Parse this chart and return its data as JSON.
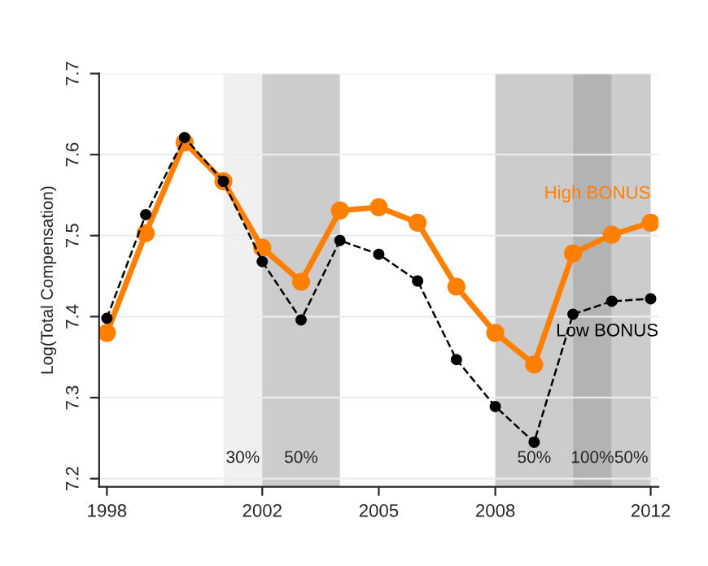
{
  "chart_data": {
    "type": "line",
    "ylabel": "Log(Total Compensation)",
    "x": [
      1998,
      1999,
      2000,
      2001,
      2002,
      2003,
      2004,
      2005,
      2006,
      2007,
      2008,
      2009,
      2010,
      2011,
      2012
    ],
    "series": [
      {
        "name": "Low BONUS",
        "color": "#000000",
        "marker": "circle",
        "line_style": "dashed",
        "values": [
          7.398,
          7.526,
          7.621,
          7.567,
          7.468,
          7.396,
          7.494,
          7.477,
          7.444,
          7.347,
          7.289,
          7.245,
          7.403,
          7.419,
          7.422
        ]
      },
      {
        "name": "High BONUS",
        "color": "#ff8000",
        "marker": "circle",
        "line_style": "solid",
        "values": [
          7.38,
          7.503,
          7.615,
          7.567,
          7.485,
          7.443,
          7.531,
          7.535,
          7.516,
          7.437,
          7.38,
          7.341,
          7.478,
          7.501,
          7.516
        ]
      }
    ],
    "bands": [
      {
        "axis": "x",
        "from": 2001,
        "to": 2002,
        "label": "30%",
        "color": "#f0f0f0"
      },
      {
        "axis": "x",
        "from": 2002,
        "to": 2004,
        "label": "50%",
        "color": "#cccccc"
      },
      {
        "axis": "x",
        "from": 2008,
        "to": 2010,
        "label": "50%",
        "color": "#cccccc"
      },
      {
        "axis": "x",
        "from": 2010,
        "to": 2011,
        "label": "100%",
        "color": "#b3b3b3"
      },
      {
        "axis": "x",
        "from": 2011,
        "to": 2012,
        "label": "50%",
        "color": "#cccccc"
      }
    ],
    "xlim": [
      1997.8,
      2012.2
    ],
    "xticks": [
      1998,
      2002,
      2005,
      2008,
      2012
    ],
    "ylim": [
      7.19,
      7.7
    ],
    "yticks": [
      7.2,
      7.3,
      7.4,
      7.5,
      7.6,
      7.7
    ],
    "grid": "y",
    "legend": false
  }
}
